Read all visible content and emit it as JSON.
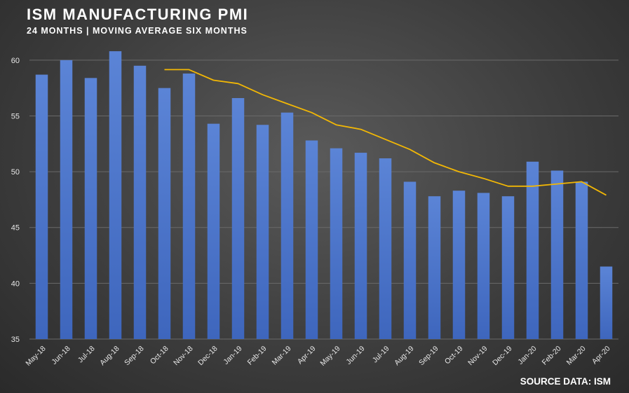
{
  "header": {
    "title": "ISM MANUFACTURING PMI",
    "subtitle": "24 MONTHS | MOVING AVERAGE SIX MONTHS"
  },
  "footer": {
    "source": "SOURCE DATA: ISM"
  },
  "colors": {
    "bar": "#4a74c9",
    "line": "#f2b705",
    "grid": "#6a6a6a"
  },
  "chart_data": {
    "type": "bar",
    "title": "ISM MANUFACTURING PMI",
    "subtitle": "24 MONTHS | MOVING AVERAGE SIX MONTHS",
    "xlabel": "",
    "ylabel": "",
    "ylim": [
      35,
      62
    ],
    "yticks": [
      35,
      40,
      45,
      50,
      55,
      60
    ],
    "grid": true,
    "categories": [
      "May-18",
      "Jun-18",
      "Jul-18",
      "Aug-18",
      "Sep-18",
      "Oct-18",
      "Nov-18",
      "Dec-18",
      "Jan-19",
      "Feb-19",
      "Mar-19",
      "Apr-19",
      "May-19",
      "Jun-19",
      "Jul-19",
      "Aug-19",
      "Sep-19",
      "Oct-19",
      "Nov-19",
      "Dec-19",
      "Jan-20",
      "Feb-20",
      "Mar-20",
      "Apr-20"
    ],
    "series": [
      {
        "type": "bar",
        "values": [
          58.7,
          60.0,
          58.4,
          60.8,
          59.5,
          57.5,
          58.8,
          54.3,
          56.6,
          54.2,
          55.3,
          52.8,
          52.1,
          51.7,
          51.2,
          49.1,
          47.8,
          48.3,
          48.1,
          47.8,
          50.9,
          50.1,
          49.1,
          41.5
        ]
      },
      {
        "type": "line",
        "values": [
          null,
          null,
          null,
          null,
          null,
          59.15,
          59.15,
          58.2,
          57.9,
          56.9,
          56.1,
          55.3,
          54.2,
          53.8,
          52.9,
          52.0,
          50.8,
          50.0,
          49.4,
          48.7,
          48.7,
          48.9,
          49.1,
          47.9
        ]
      }
    ]
  }
}
